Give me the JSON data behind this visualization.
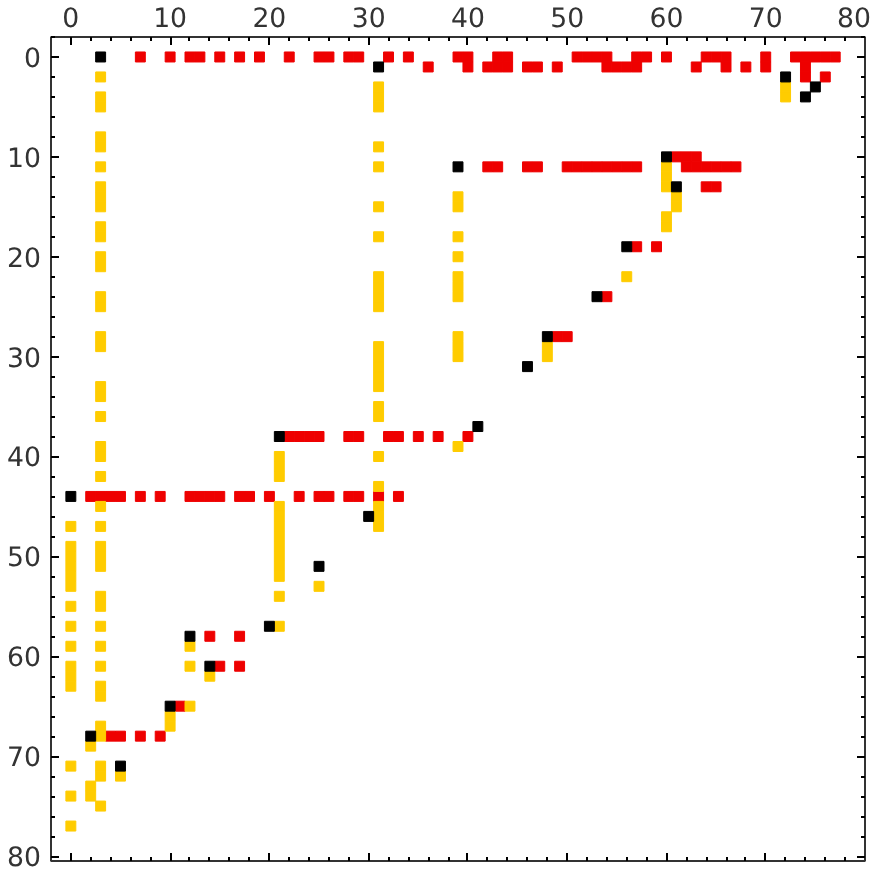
{
  "chart_data": {
    "type": "scatter",
    "marker": "square",
    "grid": false,
    "xlim": [
      -2,
      80
    ],
    "ylim": [
      80.5,
      -2
    ],
    "xticks": [
      0,
      10,
      20,
      30,
      40,
      50,
      60,
      70,
      80
    ],
    "yticks": [
      0,
      10,
      20,
      30,
      40,
      50,
      60,
      70,
      80
    ],
    "series": [
      {
        "color": "#ee0000",
        "x": [
          7,
          10,
          12,
          13,
          15,
          17,
          19,
          22,
          25,
          26,
          28,
          29,
          32,
          34,
          39,
          40,
          43,
          44,
          51,
          52,
          53,
          54,
          57,
          58,
          60,
          64,
          65,
          66,
          70,
          73,
          74,
          75,
          76,
          77,
          36,
          40,
          42,
          43,
          44,
          46,
          47,
          49,
          54,
          55,
          56,
          57,
          63,
          66,
          68,
          70,
          74,
          74,
          76,
          61,
          62,
          63,
          42,
          43,
          46,
          47,
          50,
          51,
          52,
          53,
          54,
          55,
          56,
          57,
          62,
          63,
          64,
          65,
          66,
          67,
          64,
          65,
          57,
          59,
          54,
          49,
          50,
          22,
          23,
          24,
          25,
          28,
          29,
          32,
          33,
          35,
          37,
          40,
          2,
          3,
          4,
          5,
          7,
          9,
          12,
          13,
          14,
          15,
          17,
          18,
          20,
          23,
          25,
          26,
          28,
          29,
          31,
          33,
          14,
          17,
          15,
          17,
          11,
          4,
          5,
          7,
          9
        ],
        "values": [
          0,
          0,
          0,
          0,
          0,
          0,
          0,
          0,
          0,
          0,
          0,
          0,
          0,
          0,
          0,
          0,
          0,
          0,
          0,
          0,
          0,
          0,
          0,
          0,
          0,
          0,
          0,
          0,
          0,
          0,
          0,
          0,
          0,
          0,
          1,
          1,
          1,
          1,
          1,
          1,
          1,
          1,
          1,
          1,
          1,
          1,
          1,
          1,
          1,
          1,
          1,
          2,
          2,
          10,
          10,
          10,
          11,
          11,
          11,
          11,
          11,
          11,
          11,
          11,
          11,
          11,
          11,
          11,
          11,
          11,
          11,
          11,
          11,
          11,
          13,
          13,
          19,
          19,
          24,
          28,
          28,
          38,
          38,
          38,
          38,
          38,
          38,
          38,
          38,
          38,
          38,
          38,
          44,
          44,
          44,
          44,
          44,
          44,
          44,
          44,
          44,
          44,
          44,
          44,
          44,
          44,
          44,
          44,
          44,
          44,
          44,
          44,
          58,
          58,
          61,
          61,
          65,
          68,
          68,
          68,
          68
        ]
      },
      {
        "color": "#ffcc00",
        "x": [
          3,
          3,
          3,
          3,
          3,
          3,
          3,
          3,
          3,
          3,
          3,
          3,
          3,
          3,
          3,
          3,
          3,
          3,
          3,
          3,
          3,
          3,
          3,
          3,
          3,
          3,
          3,
          3,
          3,
          3,
          3,
          3,
          3,
          3,
          3,
          3,
          3,
          3,
          3,
          3,
          2,
          2,
          2,
          0,
          0,
          0,
          0,
          0,
          0,
          0,
          0,
          0,
          0,
          0,
          0,
          0,
          0,
          0,
          31,
          31,
          31,
          31,
          31,
          31,
          31,
          31,
          31,
          31,
          31,
          31,
          31,
          31,
          31,
          31,
          31,
          31,
          31,
          31,
          31,
          31,
          31,
          39,
          39,
          39,
          39,
          39,
          39,
          39,
          39,
          39,
          39,
          39,
          21,
          21,
          21,
          21,
          21,
          21,
          21,
          21,
          21,
          21,
          21,
          21,
          21,
          25,
          12,
          12,
          12,
          14,
          10,
          10,
          5,
          72,
          72,
          60,
          60,
          60,
          60,
          60,
          61,
          61,
          56,
          48,
          48
        ],
        "values": [
          2,
          4,
          5,
          8,
          9,
          11,
          13,
          14,
          15,
          17,
          18,
          20,
          21,
          24,
          25,
          28,
          29,
          33,
          34,
          36,
          39,
          40,
          42,
          45,
          47,
          49,
          50,
          51,
          54,
          55,
          57,
          59,
          61,
          63,
          64,
          67,
          68,
          71,
          72,
          75,
          69,
          73,
          74,
          47,
          49,
          50,
          51,
          52,
          53,
          55,
          57,
          59,
          61,
          62,
          63,
          71,
          74,
          77,
          3,
          4,
          5,
          9,
          11,
          15,
          18,
          22,
          23,
          24,
          25,
          29,
          30,
          31,
          32,
          33,
          35,
          36,
          40,
          43,
          45,
          46,
          47,
          14,
          15,
          18,
          20,
          22,
          23,
          24,
          28,
          29,
          30,
          39,
          40,
          41,
          42,
          45,
          46,
          47,
          48,
          49,
          50,
          51,
          52,
          54,
          57,
          53,
          59,
          61,
          65,
          62,
          66,
          67,
          72,
          3,
          4,
          11,
          12,
          13,
          16,
          17,
          14,
          15,
          22,
          29,
          30
        ]
      },
      {
        "color": "#000000",
        "x": [
          3,
          31,
          72,
          75,
          74,
          39,
          60,
          61,
          56,
          53,
          48,
          46,
          41,
          21,
          0,
          30,
          25,
          20,
          12,
          14,
          10,
          2,
          5
        ],
        "values": [
          0,
          1,
          2,
          3,
          4,
          11,
          10,
          13,
          19,
          24,
          28,
          31,
          37,
          38,
          44,
          46,
          51,
          57,
          58,
          61,
          65,
          68,
          71
        ]
      }
    ]
  }
}
